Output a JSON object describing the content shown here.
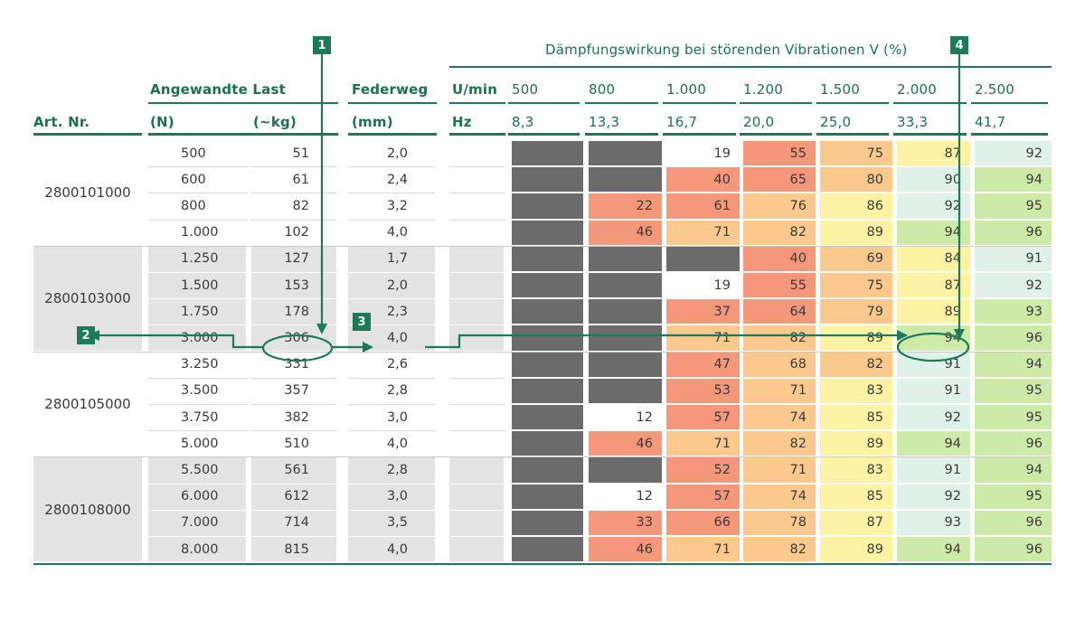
{
  "title": "Dämpfungswirkung bei störenden Vibrationen V (%)",
  "headers": {
    "art_nr": "Art. Nr.",
    "last": "Angewandte Last",
    "last_n": "(N)",
    "last_kg": "(~kg)",
    "federweg": "Federweg",
    "federweg_unit": "(mm)",
    "umin": "U/min",
    "hz": "Hz",
    "rpm": [
      "500",
      "800",
      "1.000",
      "1.200",
      "1.500",
      "2.000",
      "2.500"
    ],
    "freq": [
      "8,3",
      "13,3",
      "16,7",
      "20,0",
      "25,0",
      "33,3",
      "41,7"
    ]
  },
  "groups": [
    {
      "art": "2800101000",
      "shaded": false,
      "rows": [
        {
          "n": "500",
          "kg": "51",
          "mm": "2,0",
          "v": [
            "x",
            "x",
            "19",
            "55",
            "75",
            "87",
            "92"
          ]
        },
        {
          "n": "600",
          "kg": "61",
          "mm": "2,4",
          "v": [
            "x",
            "x",
            "40",
            "65",
            "80",
            "90",
            "94"
          ]
        },
        {
          "n": "800",
          "kg": "82",
          "mm": "3,2",
          "v": [
            "x",
            "22",
            "61",
            "76",
            "86",
            "92",
            "95"
          ]
        },
        {
          "n": "1.000",
          "kg": "102",
          "mm": "4,0",
          "v": [
            "x",
            "46",
            "71",
            "82",
            "89",
            "94",
            "96"
          ]
        }
      ]
    },
    {
      "art": "2800103000",
      "shaded": true,
      "rows": [
        {
          "n": "1.250",
          "kg": "127",
          "mm": "1,7",
          "v": [
            "x",
            "x",
            "x",
            "40",
            "69",
            "84",
            "91"
          ]
        },
        {
          "n": "1.500",
          "kg": "153",
          "mm": "2,0",
          "v": [
            "x",
            "x",
            "19",
            "55",
            "75",
            "87",
            "92"
          ]
        },
        {
          "n": "1.750",
          "kg": "178",
          "mm": "2,3",
          "v": [
            "x",
            "x",
            "37",
            "64",
            "79",
            "89",
            "93"
          ]
        },
        {
          "n": "3.000",
          "kg": "306",
          "mm": "4,0",
          "v": [
            "x",
            "x",
            "71",
            "82",
            "89",
            "94",
            "96"
          ]
        }
      ]
    },
    {
      "art": "2800105000",
      "shaded": false,
      "rows": [
        {
          "n": "3.250",
          "kg": "331",
          "mm": "2,6",
          "v": [
            "x",
            "x",
            "47",
            "68",
            "82",
            "91",
            "94"
          ]
        },
        {
          "n": "3.500",
          "kg": "357",
          "mm": "2,8",
          "v": [
            "x",
            "x",
            "53",
            "71",
            "83",
            "91",
            "95"
          ]
        },
        {
          "n": "3.750",
          "kg": "382",
          "mm": "3,0",
          "v": [
            "x",
            "12",
            "57",
            "74",
            "85",
            "92",
            "95"
          ]
        },
        {
          "n": "5.000",
          "kg": "510",
          "mm": "4,0",
          "v": [
            "x",
            "46",
            "71",
            "82",
            "89",
            "94",
            "96"
          ]
        }
      ]
    },
    {
      "art": "2800108000",
      "shaded": true,
      "rows": [
        {
          "n": "5.500",
          "kg": "561",
          "mm": "2,8",
          "v": [
            "x",
            "x",
            "52",
            "71",
            "83",
            "91",
            "94"
          ]
        },
        {
          "n": "6.000",
          "kg": "612",
          "mm": "3,0",
          "v": [
            "x",
            "12",
            "57",
            "74",
            "85",
            "92",
            "95"
          ]
        },
        {
          "n": "7.000",
          "kg": "714",
          "mm": "3,5",
          "v": [
            "x",
            "33",
            "66",
            "78",
            "87",
            "93",
            "96"
          ]
        },
        {
          "n": "8.000",
          "kg": "815",
          "mm": "4,0",
          "v": [
            "x",
            "46",
            "71",
            "82",
            "89",
            "94",
            "96"
          ]
        }
      ]
    }
  ],
  "callouts": [
    "1",
    "2",
    "3",
    "4"
  ],
  "colors": {
    "accent": "#1d7a59",
    "blocked": "#6b6b6b",
    "shade": "#e3e3e3",
    "red": "#f4977a",
    "orange": "#fbc98d",
    "yellow": "#fef3a5",
    "lightgreen": "#dff1e9",
    "green": "#cdeaa9"
  }
}
